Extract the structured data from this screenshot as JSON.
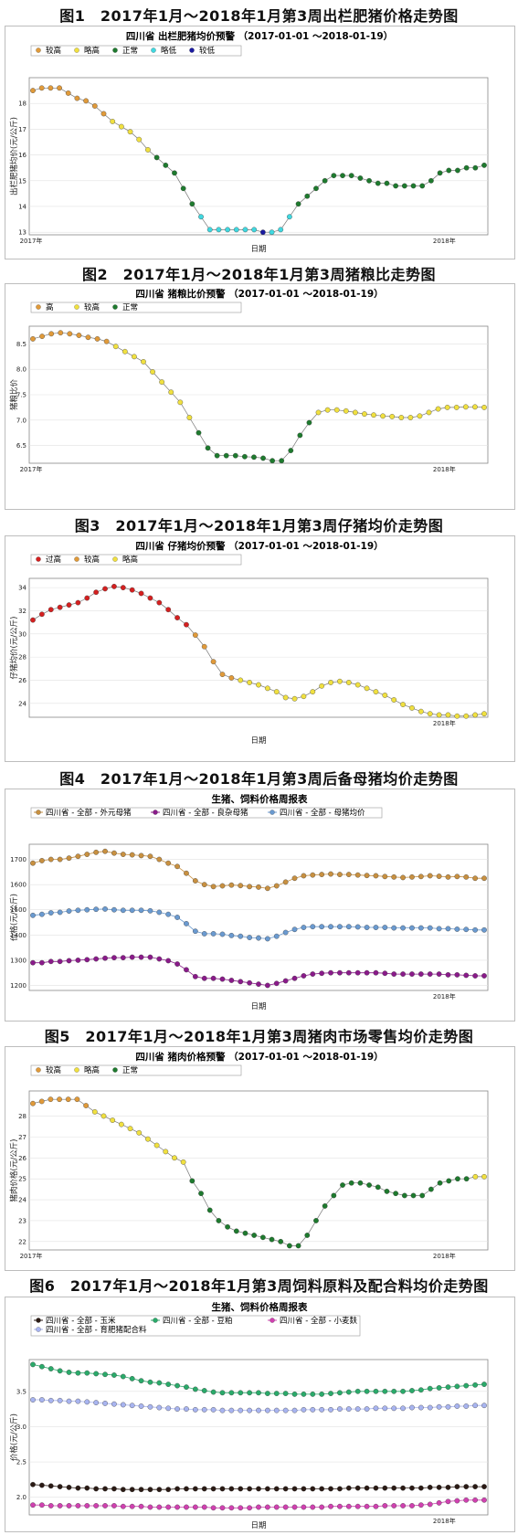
{
  "figures": [
    {
      "fig_title": "图1　2017年1月～2018年1月第3周出栏肥猪价格走势图",
      "panel_title": "四川省 出栏肥猪均价预警 （2017-01-01 ～2018-01-19）",
      "legend": [
        {
          "label": "较高",
          "color": "#e09a3a"
        },
        {
          "label": "略高",
          "color": "#f0e040"
        },
        {
          "label": "正常",
          "color": "#1e7a2e"
        },
        {
          "label": "略低",
          "color": "#40d8e0"
        },
        {
          "label": "较低",
          "color": "#1a1aa0"
        }
      ]
    },
    {
      "fig_title": "图2　2017年1月～2018年1月第3周猪粮比走势图",
      "panel_title": "四川省 猪粮比价预警 （2017-01-01 ～2018-01-19）",
      "legend": [
        {
          "label": "高",
          "color": "#e09a3a"
        },
        {
          "label": "较高",
          "color": "#f0e040"
        },
        {
          "label": "正常",
          "color": "#1e7a2e"
        }
      ]
    },
    {
      "fig_title": "图3　2017年1月～2018年1月第3周仔猪均价走势图",
      "panel_title": "四川省 仔猪均价预警 （2017-01-01 ～2018-01-19）",
      "legend": [
        {
          "label": "过高",
          "color": "#d42020"
        },
        {
          "label": "较高",
          "color": "#e09a3a"
        },
        {
          "label": "略高",
          "color": "#f0e040"
        }
      ]
    },
    {
      "fig_title": "图4　2017年1月～2018年1月第3周后备母猪均价走势图",
      "panel_title": "生猪、饲料价格周报表",
      "legend": [
        {
          "label": "四川省 - 全部 - 外元母猪",
          "color": "#c89040"
        },
        {
          "label": "四川省 - 全部 - 良杂母猪",
          "color": "#8a1a8a"
        },
        {
          "label": "四川省 - 全部 - 母猪均价",
          "color": "#6a9ad0"
        }
      ]
    },
    {
      "fig_title": "图5　2017年1月～2018年1月第3周猪肉市场零售均价走势图",
      "panel_title": "四川省 猪肉价格预警 （2017-01-01 ～2018-01-19）",
      "legend": [
        {
          "label": "较高",
          "color": "#e09a3a"
        },
        {
          "label": "略高",
          "color": "#f0e040"
        },
        {
          "label": "正常",
          "color": "#1e7a2e"
        }
      ]
    },
    {
      "fig_title": "图6　2017年1月～2018年1月第3周饲料原料及配合料均价走势图",
      "panel_title": "生猪、饲料价格周报表",
      "legend": [
        {
          "label": "四川省 - 全部 - 玉米",
          "color": "#2a1a14"
        },
        {
          "label": "四川省 - 全部 - 豆粕",
          "color": "#2aaa6a"
        },
        {
          "label": "四川省 - 全部 - 小麦麸",
          "color": "#d040b0"
        },
        {
          "label": "四川省 - 全部 - 育肥猪配合料",
          "color": "#a8b4f0"
        }
      ]
    }
  ],
  "chart_data": [
    {
      "type": "scatter",
      "title": "四川省 出栏肥猪均价预警 （2017-01-01 ～2018-01-19）",
      "xlabel": "日期",
      "ylabel": "出栏肥猪均价(元/公斤)",
      "ylim": [
        12.9,
        19.0
      ],
      "yticks": [
        13,
        14,
        15,
        16,
        17,
        18
      ],
      "xticks": [
        "2017年",
        "2018年"
      ],
      "grid": true,
      "legend_position": "top-left",
      "categories_legend": [
        "较高",
        "略高",
        "正常",
        "略低",
        "较低"
      ],
      "series": [
        {
          "values": [
            18.5,
            18.6,
            18.6,
            18.6,
            18.4,
            18.2,
            18.1,
            17.9,
            17.6,
            17.3,
            17.1,
            16.9,
            16.6,
            16.2,
            15.9,
            15.6,
            15.3,
            14.7,
            14.1,
            13.6,
            13.1,
            13.1,
            13.1,
            13.1,
            13.1,
            13.1,
            13.0,
            13.0,
            13.1,
            13.6,
            14.1,
            14.4,
            14.7,
            15.0,
            15.2,
            15.2,
            15.2,
            15.1,
            15.0,
            14.9,
            14.9,
            14.8,
            14.8,
            14.8,
            14.8,
            15.0,
            15.3,
            15.4,
            15.4,
            15.5,
            15.5,
            15.6
          ],
          "status": [
            0,
            0,
            0,
            0,
            0,
            0,
            0,
            0,
            0,
            1,
            1,
            1,
            1,
            1,
            2,
            2,
            2,
            2,
            2,
            3,
            3,
            3,
            3,
            3,
            3,
            3,
            4,
            3,
            3,
            3,
            2,
            2,
            2,
            2,
            2,
            2,
            2,
            2,
            2,
            2,
            2,
            2,
            2,
            2,
            2,
            2,
            2,
            2,
            2,
            2,
            2,
            2
          ]
        }
      ]
    },
    {
      "type": "scatter",
      "title": "四川省 猪粮比价预警 （2017-01-01 ～2018-01-19）",
      "xlabel": "",
      "ylabel": "猪粮比价",
      "ylim": [
        6.15,
        8.85
      ],
      "yticks": [
        6.5,
        7.0,
        7.5,
        8.0,
        8.5
      ],
      "xticks": [
        "2017年",
        "2018年"
      ],
      "grid": true,
      "legend_position": "top-left",
      "categories_legend": [
        "高",
        "较高",
        "正常"
      ],
      "series": [
        {
          "values": [
            8.6,
            8.65,
            8.7,
            8.72,
            8.7,
            8.67,
            8.63,
            8.6,
            8.55,
            8.45,
            8.35,
            8.25,
            8.15,
            7.95,
            7.75,
            7.55,
            7.35,
            7.05,
            6.75,
            6.45,
            6.3,
            6.3,
            6.3,
            6.28,
            6.27,
            6.25,
            6.2,
            6.2,
            6.4,
            6.7,
            6.95,
            7.15,
            7.2,
            7.2,
            7.18,
            7.15,
            7.12,
            7.1,
            7.08,
            7.07,
            7.05,
            7.05,
            7.08,
            7.15,
            7.22,
            7.25,
            7.25,
            7.26,
            7.26,
            7.25
          ],
          "status": [
            0,
            0,
            0,
            0,
            0,
            0,
            0,
            0,
            0,
            1,
            1,
            1,
            1,
            1,
            1,
            1,
            1,
            1,
            2,
            2,
            2,
            2,
            2,
            2,
            2,
            2,
            2,
            2,
            2,
            2,
            2,
            1,
            1,
            1,
            1,
            1,
            1,
            1,
            1,
            1,
            1,
            1,
            1,
            1,
            1,
            1,
            1,
            1,
            1,
            1
          ]
        }
      ]
    },
    {
      "type": "scatter",
      "title": "四川省 仔猪均价预警 （2017-01-01 ～2018-01-19）",
      "xlabel": "日期",
      "ylabel": "仔猪均价(元/公斤)",
      "ylim": [
        22.8,
        34.8
      ],
      "yticks": [
        24,
        26,
        28,
        30,
        32,
        34
      ],
      "xticks": [
        "2018年"
      ],
      "grid": true,
      "legend_position": "top-left",
      "categories_legend": [
        "过高",
        "较高",
        "略高"
      ],
      "series": [
        {
          "values": [
            31.2,
            31.7,
            32.1,
            32.3,
            32.5,
            32.7,
            33.1,
            33.6,
            33.9,
            34.1,
            34.0,
            33.8,
            33.5,
            33.1,
            32.7,
            32.1,
            31.4,
            30.8,
            29.9,
            28.9,
            27.6,
            26.5,
            26.2,
            26.0,
            25.8,
            25.6,
            25.3,
            25.0,
            24.5,
            24.4,
            24.6,
            25.0,
            25.5,
            25.8,
            25.9,
            25.8,
            25.6,
            25.3,
            25.0,
            24.7,
            24.3,
            23.9,
            23.6,
            23.3,
            23.1,
            23.0,
            23.0,
            22.9,
            22.9,
            23.0,
            23.1
          ],
          "status": [
            0,
            0,
            0,
            0,
            0,
            0,
            0,
            0,
            0,
            0,
            0,
            0,
            0,
            0,
            0,
            0,
            0,
            0,
            1,
            1,
            1,
            1,
            1,
            2,
            2,
            2,
            2,
            2,
            2,
            2,
            2,
            2,
            2,
            2,
            2,
            2,
            2,
            2,
            2,
            2,
            2,
            2,
            2,
            2,
            2,
            2,
            2,
            2,
            2,
            2,
            2
          ]
        }
      ]
    },
    {
      "type": "line",
      "title": "生猪、饲料价格周报表",
      "xlabel": "日期",
      "ylabel": "价格(元/公斤)",
      "ylim": [
        1180,
        1760
      ],
      "yticks": [
        1200,
        1300,
        1400,
        1500,
        1600,
        1700
      ],
      "xticks": [
        "2018年"
      ],
      "grid": true,
      "legend_position": "top-left",
      "series": [
        {
          "name": "四川省 - 全部 - 外元母猪",
          "values": [
            1685,
            1695,
            1700,
            1700,
            1705,
            1712,
            1720,
            1728,
            1732,
            1725,
            1720,
            1718,
            1715,
            1712,
            1700,
            1685,
            1672,
            1645,
            1615,
            1600,
            1592,
            1595,
            1598,
            1596,
            1592,
            1590,
            1585,
            1595,
            1610,
            1625,
            1635,
            1638,
            1640,
            1642,
            1640,
            1640,
            1638,
            1636,
            1635,
            1632,
            1630,
            1628,
            1630,
            1632,
            1635,
            1633,
            1630,
            1632,
            1630,
            1625,
            1625
          ]
        },
        {
          "name": "四川省 - 全部 - 良杂母猪",
          "values": [
            1290,
            1290,
            1295,
            1295,
            1298,
            1300,
            1302,
            1305,
            1308,
            1310,
            1310,
            1312,
            1312,
            1312,
            1305,
            1298,
            1285,
            1262,
            1235,
            1228,
            1228,
            1225,
            1220,
            1215,
            1210,
            1205,
            1200,
            1208,
            1218,
            1228,
            1238,
            1245,
            1248,
            1250,
            1250,
            1250,
            1250,
            1250,
            1250,
            1248,
            1245,
            1245,
            1245,
            1245,
            1245,
            1245,
            1242,
            1242,
            1240,
            1238,
            1238
          ]
        },
        {
          "name": "四川省 - 全部 - 母猪均价",
          "values": [
            1478,
            1482,
            1488,
            1490,
            1495,
            1498,
            1500,
            1502,
            1503,
            1500,
            1498,
            1498,
            1498,
            1496,
            1490,
            1482,
            1470,
            1445,
            1415,
            1405,
            1405,
            1403,
            1398,
            1395,
            1390,
            1388,
            1385,
            1395,
            1410,
            1422,
            1430,
            1433,
            1433,
            1433,
            1433,
            1433,
            1432,
            1430,
            1430,
            1430,
            1428,
            1428,
            1428,
            1428,
            1428,
            1425,
            1425,
            1423,
            1422,
            1420,
            1420
          ]
        }
      ]
    },
    {
      "type": "scatter",
      "title": "四川省 猪肉价格预警 （2017-01-01 ～2018-01-19）",
      "xlabel": "",
      "ylabel": "猪肉价格(元/公斤)",
      "ylim": [
        21.6,
        29.2
      ],
      "yticks": [
        22,
        23,
        24,
        25,
        26,
        27,
        28
      ],
      "xticks": [
        "2017年",
        "2018年"
      ],
      "grid": true,
      "legend_position": "top-left",
      "categories_legend": [
        "较高",
        "略高",
        "正常"
      ],
      "series": [
        {
          "values": [
            28.6,
            28.7,
            28.8,
            28.8,
            28.8,
            28.8,
            28.5,
            28.2,
            28.0,
            27.8,
            27.6,
            27.4,
            27.2,
            26.9,
            26.6,
            26.3,
            26.0,
            25.8,
            24.9,
            24.3,
            23.5,
            23.0,
            22.7,
            22.5,
            22.4,
            22.3,
            22.2,
            22.1,
            22.0,
            21.8,
            21.8,
            22.3,
            23.0,
            23.7,
            24.2,
            24.7,
            24.8,
            24.8,
            24.7,
            24.6,
            24.4,
            24.3,
            24.2,
            24.2,
            24.2,
            24.5,
            24.8,
            24.9,
            25.0,
            25.0,
            25.1,
            25.1
          ],
          "status": [
            0,
            0,
            0,
            0,
            0,
            0,
            0,
            1,
            1,
            1,
            1,
            1,
            1,
            1,
            1,
            1,
            1,
            1,
            2,
            2,
            2,
            2,
            2,
            2,
            2,
            2,
            2,
            2,
            2,
            2,
            2,
            2,
            2,
            2,
            2,
            2,
            2,
            2,
            2,
            2,
            2,
            2,
            2,
            2,
            2,
            2,
            2,
            2,
            2,
            2,
            1,
            1
          ]
        }
      ]
    },
    {
      "type": "line",
      "title": "生猪、饲料价格周报表",
      "xlabel": "日期",
      "ylabel": "价格(元/公斤)",
      "ylim": [
        1.75,
        3.95
      ],
      "yticks": [
        2.0,
        2.5,
        3.0,
        3.5
      ],
      "xticks": [
        "2018年"
      ],
      "grid": true,
      "legend_position": "top-left",
      "series": [
        {
          "name": "四川省 - 全部 - 玉米",
          "values": [
            2.18,
            2.17,
            2.16,
            2.15,
            2.14,
            2.13,
            2.13,
            2.12,
            2.12,
            2.12,
            2.11,
            2.11,
            2.11,
            2.11,
            2.11,
            2.11,
            2.12,
            2.12,
            2.12,
            2.12,
            2.12,
            2.12,
            2.12,
            2.12,
            2.12,
            2.12,
            2.12,
            2.12,
            2.12,
            2.12,
            2.12,
            2.12,
            2.12,
            2.12,
            2.12,
            2.13,
            2.13,
            2.13,
            2.13,
            2.13,
            2.13,
            2.13,
            2.13,
            2.13,
            2.14,
            2.14,
            2.14,
            2.15,
            2.15,
            2.15,
            2.15
          ]
        },
        {
          "name": "四川省 - 全部 - 豆粕",
          "values": [
            3.88,
            3.85,
            3.82,
            3.79,
            3.77,
            3.76,
            3.76,
            3.75,
            3.74,
            3.73,
            3.71,
            3.68,
            3.65,
            3.63,
            3.62,
            3.6,
            3.58,
            3.56,
            3.53,
            3.51,
            3.49,
            3.48,
            3.48,
            3.48,
            3.48,
            3.48,
            3.47,
            3.47,
            3.47,
            3.46,
            3.46,
            3.46,
            3.46,
            3.47,
            3.48,
            3.49,
            3.5,
            3.5,
            3.5,
            3.5,
            3.5,
            3.5,
            3.51,
            3.52,
            3.54,
            3.55,
            3.56,
            3.57,
            3.58,
            3.59,
            3.6
          ]
        },
        {
          "name": "四川省 - 全部 - 小麦麸",
          "values": [
            1.89,
            1.89,
            1.88,
            1.88,
            1.88,
            1.88,
            1.88,
            1.88,
            1.88,
            1.88,
            1.87,
            1.87,
            1.87,
            1.86,
            1.86,
            1.86,
            1.86,
            1.86,
            1.86,
            1.86,
            1.85,
            1.85,
            1.85,
            1.85,
            1.85,
            1.86,
            1.86,
            1.86,
            1.86,
            1.86,
            1.86,
            1.86,
            1.86,
            1.87,
            1.87,
            1.87,
            1.87,
            1.87,
            1.87,
            1.88,
            1.88,
            1.88,
            1.88,
            1.89,
            1.9,
            1.92,
            1.94,
            1.95,
            1.96,
            1.96,
            1.96
          ]
        },
        {
          "name": "四川省 - 全部 - 育肥猪配合料",
          "values": [
            3.38,
            3.38,
            3.37,
            3.37,
            3.36,
            3.36,
            3.35,
            3.34,
            3.33,
            3.32,
            3.31,
            3.3,
            3.29,
            3.28,
            3.27,
            3.26,
            3.25,
            3.25,
            3.24,
            3.24,
            3.24,
            3.23,
            3.23,
            3.23,
            3.23,
            3.23,
            3.23,
            3.23,
            3.23,
            3.23,
            3.24,
            3.24,
            3.24,
            3.24,
            3.25,
            3.25,
            3.25,
            3.25,
            3.26,
            3.26,
            3.26,
            3.26,
            3.27,
            3.27,
            3.27,
            3.28,
            3.28,
            3.29,
            3.29,
            3.3,
            3.3
          ]
        }
      ]
    }
  ]
}
